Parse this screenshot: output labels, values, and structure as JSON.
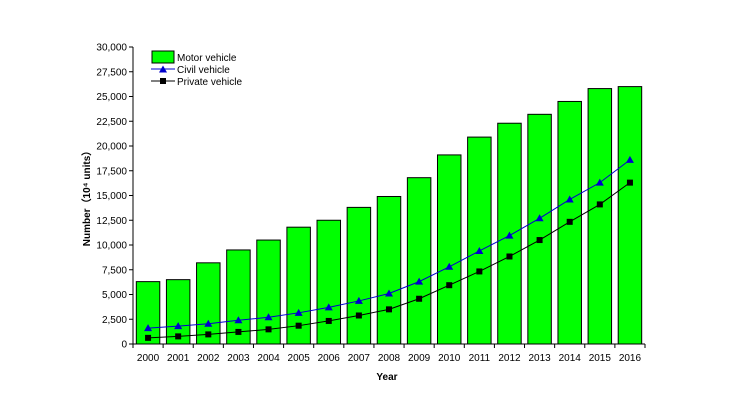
{
  "chart_data": {
    "type": "bar",
    "xlabel": "Year",
    "ylabel": "Number（10⁴ units）",
    "ylim": [
      0,
      30000
    ],
    "ytick_step": 2500,
    "ytick_labels": [
      "0",
      "2,500",
      "5,000",
      "7,500",
      "10,000",
      "12,500",
      "15,000",
      "17,500",
      "20,000",
      "22,500",
      "25,000",
      "27,500",
      "30,000"
    ],
    "categories": [
      "2000",
      "2001",
      "2002",
      "2003",
      "2004",
      "2005",
      "2006",
      "2007",
      "2008",
      "2009",
      "2010",
      "2011",
      "2012",
      "2013",
      "2014",
      "2015",
      "2016"
    ],
    "legend_position": "top-left",
    "series": [
      {
        "name": "Motor vehicle",
        "kind": "bar",
        "color": "#00ff00",
        "values": [
          6300,
          6500,
          8200,
          9500,
          10500,
          11800,
          12500,
          13800,
          14900,
          16800,
          19100,
          20900,
          22300,
          23200,
          24500,
          25800,
          26000
        ]
      },
      {
        "name": "Civil vehicle",
        "kind": "line",
        "marker": "triangle",
        "color": "#0000cc",
        "values": [
          1600,
          1800,
          2050,
          2400,
          2700,
          3150,
          3700,
          4350,
          5100,
          6300,
          7800,
          9400,
          10950,
          12700,
          14600,
          16300,
          18600
        ]
      },
      {
        "name": "Private vehicle",
        "kind": "line",
        "marker": "square",
        "color": "#000000",
        "values": [
          620,
          770,
          970,
          1220,
          1480,
          1850,
          2330,
          2880,
          3500,
          4570,
          5940,
          7330,
          8840,
          10500,
          12340,
          14100,
          16300
        ]
      }
    ]
  }
}
